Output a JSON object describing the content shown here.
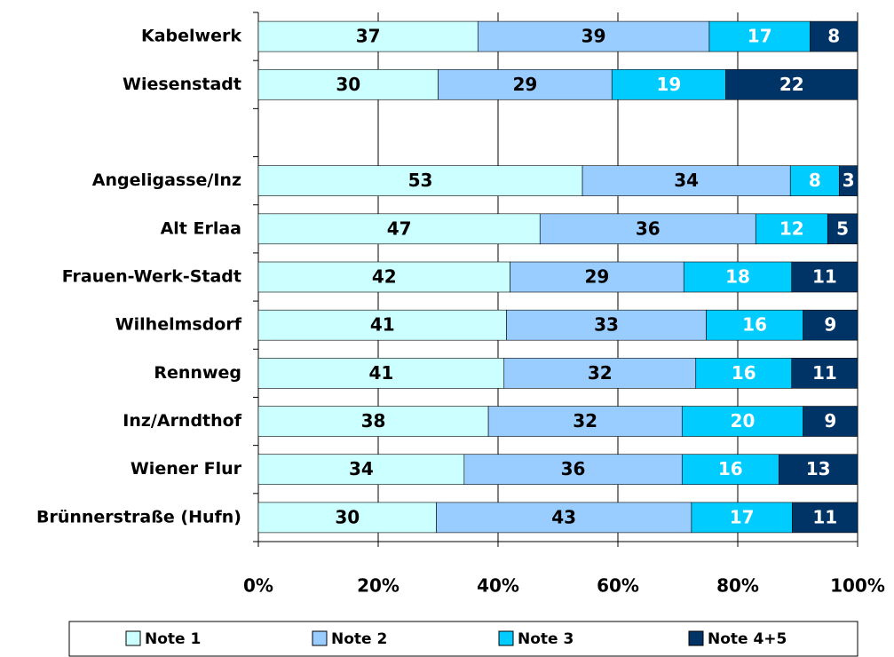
{
  "chart_data": {
    "type": "bar",
    "orientation": "horizontal",
    "stacking": "percent",
    "categories": [
      "Kabelwerk",
      "Wiesenstadt",
      null,
      "Angeligasse/Inz",
      "Alt Erlaa",
      "Frauen-Werk-Stadt",
      "Wilhelmsdorf",
      "Rennweg",
      "Inz/Arndthof",
      "Wiener Flur",
      "Brünnerstraße (Hufn)"
    ],
    "series": [
      {
        "name": "Note 1",
        "color": "#ccffff",
        "label_color": "#000000",
        "values": [
          37,
          30,
          null,
          53,
          47,
          42,
          41,
          41,
          38,
          34,
          30
        ]
      },
      {
        "name": "Note 2",
        "color": "#99ccff",
        "label_color": "#000000",
        "values": [
          39,
          29,
          null,
          34,
          36,
          29,
          33,
          32,
          32,
          36,
          43
        ]
      },
      {
        "name": "Note 3",
        "color": "#00ccff",
        "label_color": "#ffffff",
        "values": [
          17,
          19,
          null,
          8,
          12,
          18,
          16,
          16,
          20,
          16,
          17
        ]
      },
      {
        "name": "Note 4+5",
        "color": "#003366",
        "label_color": "#ffffff",
        "values": [
          8,
          22,
          null,
          3,
          5,
          11,
          9,
          11,
          9,
          13,
          11
        ]
      }
    ],
    "xlim": [
      0,
      100
    ],
    "xticks": [
      {
        "value": 0,
        "label": "0%"
      },
      {
        "value": 20,
        "label": "20%"
      },
      {
        "value": 40,
        "label": "40%"
      },
      {
        "value": 60,
        "label": "60%"
      },
      {
        "value": 80,
        "label": "80%"
      },
      {
        "value": 100,
        "label": "100%"
      }
    ],
    "grid": true,
    "legend": "bottom"
  }
}
